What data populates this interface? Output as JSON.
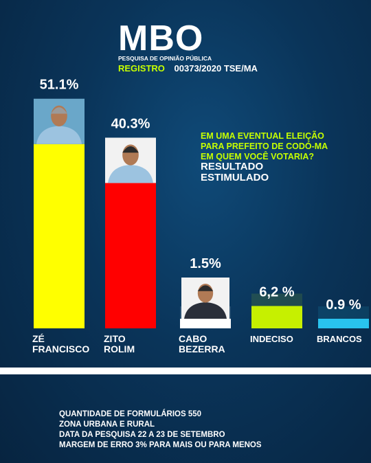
{
  "brand": {
    "logo": "MBO",
    "subtitle": "PESQUISA DE OPINIÃO PÚBLICA"
  },
  "registro": {
    "label": "REGISTRO",
    "value": "00373/2020 TSE/MA"
  },
  "question": [
    "EM UMA EVENTUAL ELEIÇÃO",
    "PARA PREFEITO DE CODÓ-MA",
    "EM QUEM VOCÊ VOTARIA?"
  ],
  "result_type": [
    "RESULTADO",
    "ESTIMULADO"
  ],
  "footer": [
    "QUANTIDADE  DE  FORMULÁRIOS   550",
    "ZONA URBANA E RURAL",
    "DATA DA PESQUISA 22 A 23  DE SETEMBRO",
    "MARGEM DE ERRO 3% PARA MAIS  OU PARA MENOS"
  ],
  "chart_data": {
    "type": "bar",
    "categories": [
      "ZÉ FRANCISCO",
      "ZITO ROLIM",
      "CABO BEZERRA",
      "INDECISO",
      "BRANCOS"
    ],
    "values": [
      51.1,
      40.3,
      1.5,
      6.2,
      0.9
    ],
    "value_labels": [
      "51.1%",
      "40.3%",
      "1.5%",
      "6,2 %",
      "0.9 %"
    ],
    "colors": [
      "#ffff00",
      "#ff0000",
      "#ffffff",
      "#c6f000",
      "#29c3ee"
    ],
    "has_photo": [
      true,
      true,
      true,
      false,
      false
    ]
  }
}
